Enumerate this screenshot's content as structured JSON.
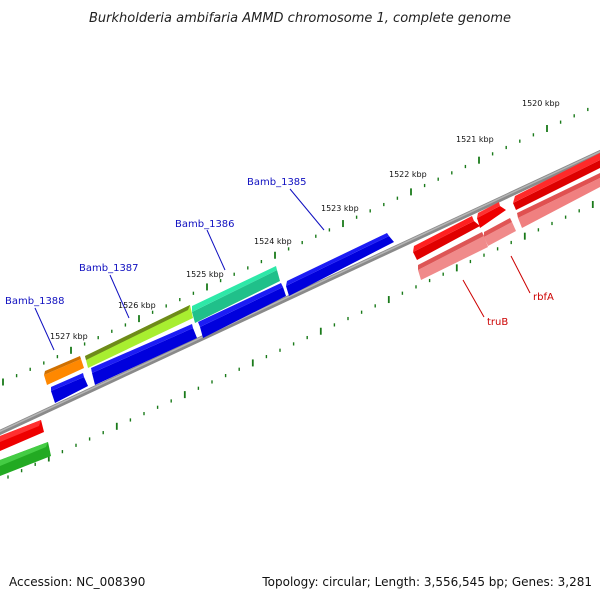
{
  "title": "Burkholderia ambifaria AMMD chromosome 1, complete genome",
  "ticks": [
    "1520 kbp",
    "1521 kbp",
    "1522 kbp",
    "1523 kbp",
    "1524 kbp",
    "1525 kbp",
    "1526 kbp",
    "1527 kbp"
  ],
  "gene_labels": {
    "bamb1385": "Bamb_1385",
    "bamb1386": "Bamb_1386",
    "bamb1387": "Bamb_1387",
    "bamb1388": "Bamb_1388",
    "trub": "truB",
    "rbfa": "rbfA"
  },
  "footer": {
    "accession": "Accession: NC_008390",
    "topology": "Topology: circular; Length: 3,556,545 bp; Genes: 3,281"
  },
  "colors": {
    "locus_label": "#1010c0",
    "gene_label": "#cc0000",
    "tick_mark": "#1a7a1a",
    "backbone": "#888888"
  }
}
